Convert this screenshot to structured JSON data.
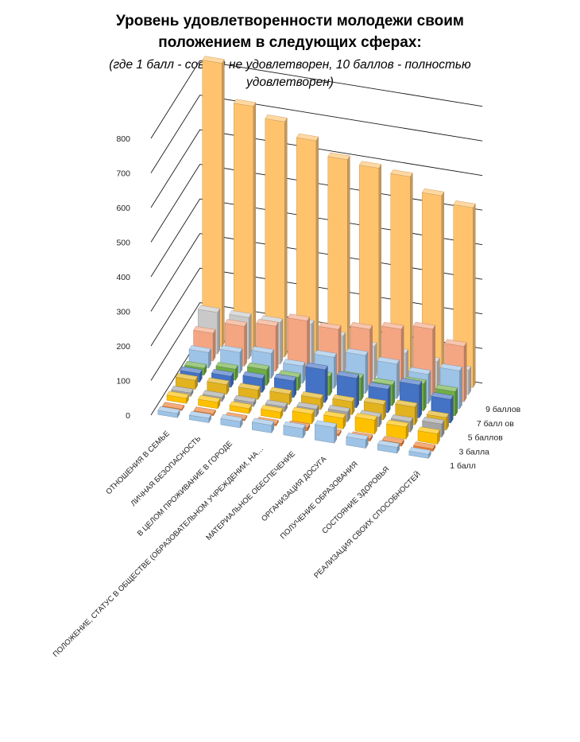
{
  "chart_data": {
    "type": "bar",
    "title": "Уровень  удовлетворенности молодежи своим положением в следующих сферах:",
    "title_lines": [
      "Уровень  удовлетворенности молодежи своим",
      "положением в следующих сферах:"
    ],
    "subtitle": "(где 1 балл - совсем не удовлетворен, 10 баллов - полностью удовлетворен)",
    "subtitle_lines": [
      "(где 1 балл - совсем не удовлетворен, 10 баллов - полностью",
      "удовлетворен)"
    ],
    "ylim": [
      0,
      800
    ],
    "yticks": [
      0,
      100,
      200,
      300,
      400,
      500,
      600,
      700,
      800
    ],
    "grid": true,
    "legend": "none",
    "categories": [
      "ОТНОШЕНИЯ В СЕМЬЕ",
      "ЛИЧНАЯ БЕЗОПАСНОСТЬ",
      "В ЦЕЛОМ ПРОЖИВАНИЕ В ГОРОДЕ",
      "ПОЛОЖЕНИЕ, СТАТУС В ОБЩЕСТВЕ (ОБРАЗОВАТЕЛЬНОМ  УЧРЕЖДЕНИИ,  НА…",
      "МАТЕРИАЛЬНОЕ ОБЕСПЕЧЕНИЕ",
      "ОРГАНИЗАЦИЯ  ДОСУГА",
      "ПОЛУЧЕНИЕ ОБРАЗОВАНИЯ",
      "СОСТОЯНИЕ ЗДОРОВЬЯ",
      "РЕАЛИЗАЦИЯ  СВОИХ СПОСОБНОСТЕЙ"
    ],
    "depth_labels": [
      "1 балл",
      "3 балла",
      "5 баллов",
      "7 балл ов",
      "9 баллов"
    ],
    "series": [
      {
        "color": "#9DC3E6",
        "values": [
          12,
          13,
          18,
          22,
          27,
          45,
          24,
          17,
          12
        ]
      },
      {
        "color": "#ED7D31",
        "values": [
          4,
          5,
          4,
          5,
          9,
          6,
          7,
          8,
          7
        ]
      },
      {
        "color": "#FFC000",
        "values": [
          15,
          18,
          15,
          19,
          28,
          31,
          40,
          35,
          30
        ]
      },
      {
        "color": "#A5A5A5",
        "values": [
          10,
          12,
          12,
          14,
          22,
          28,
          28,
          30,
          38
        ]
      },
      {
        "color": "#E2B21F",
        "values": [
          26,
          28,
          27,
          30,
          32,
          38,
          44,
          52,
          36
        ]
      },
      {
        "color": "#4472C4",
        "values": [
          25,
          32,
          40,
          48,
          95,
          85,
          68,
          95,
          68
        ]
      },
      {
        "color": "#70AD47",
        "values": [
          20,
          32,
          45,
          38,
          55,
          65,
          60,
          78,
          70
        ]
      },
      {
        "color": "#9DC3E6",
        "values": [
          45,
          60,
          72,
          50,
          90,
          110,
          100,
          85,
          110
        ]
      },
      {
        "color": "#F4A582",
        "values": [
          80,
          115,
          130,
          160,
          150,
          165,
          180,
          195,
          160
        ]
      },
      {
        "color": "#C9C9C9",
        "values": [
          120,
          120,
          120,
          130,
          110,
          95,
          90,
          80,
          70
        ]
      },
      {
        "color": "#FFC36E",
        "values": [
          820,
          710,
          680,
          640,
          600,
          590,
          580,
          540,
          520
        ]
      }
    ]
  }
}
